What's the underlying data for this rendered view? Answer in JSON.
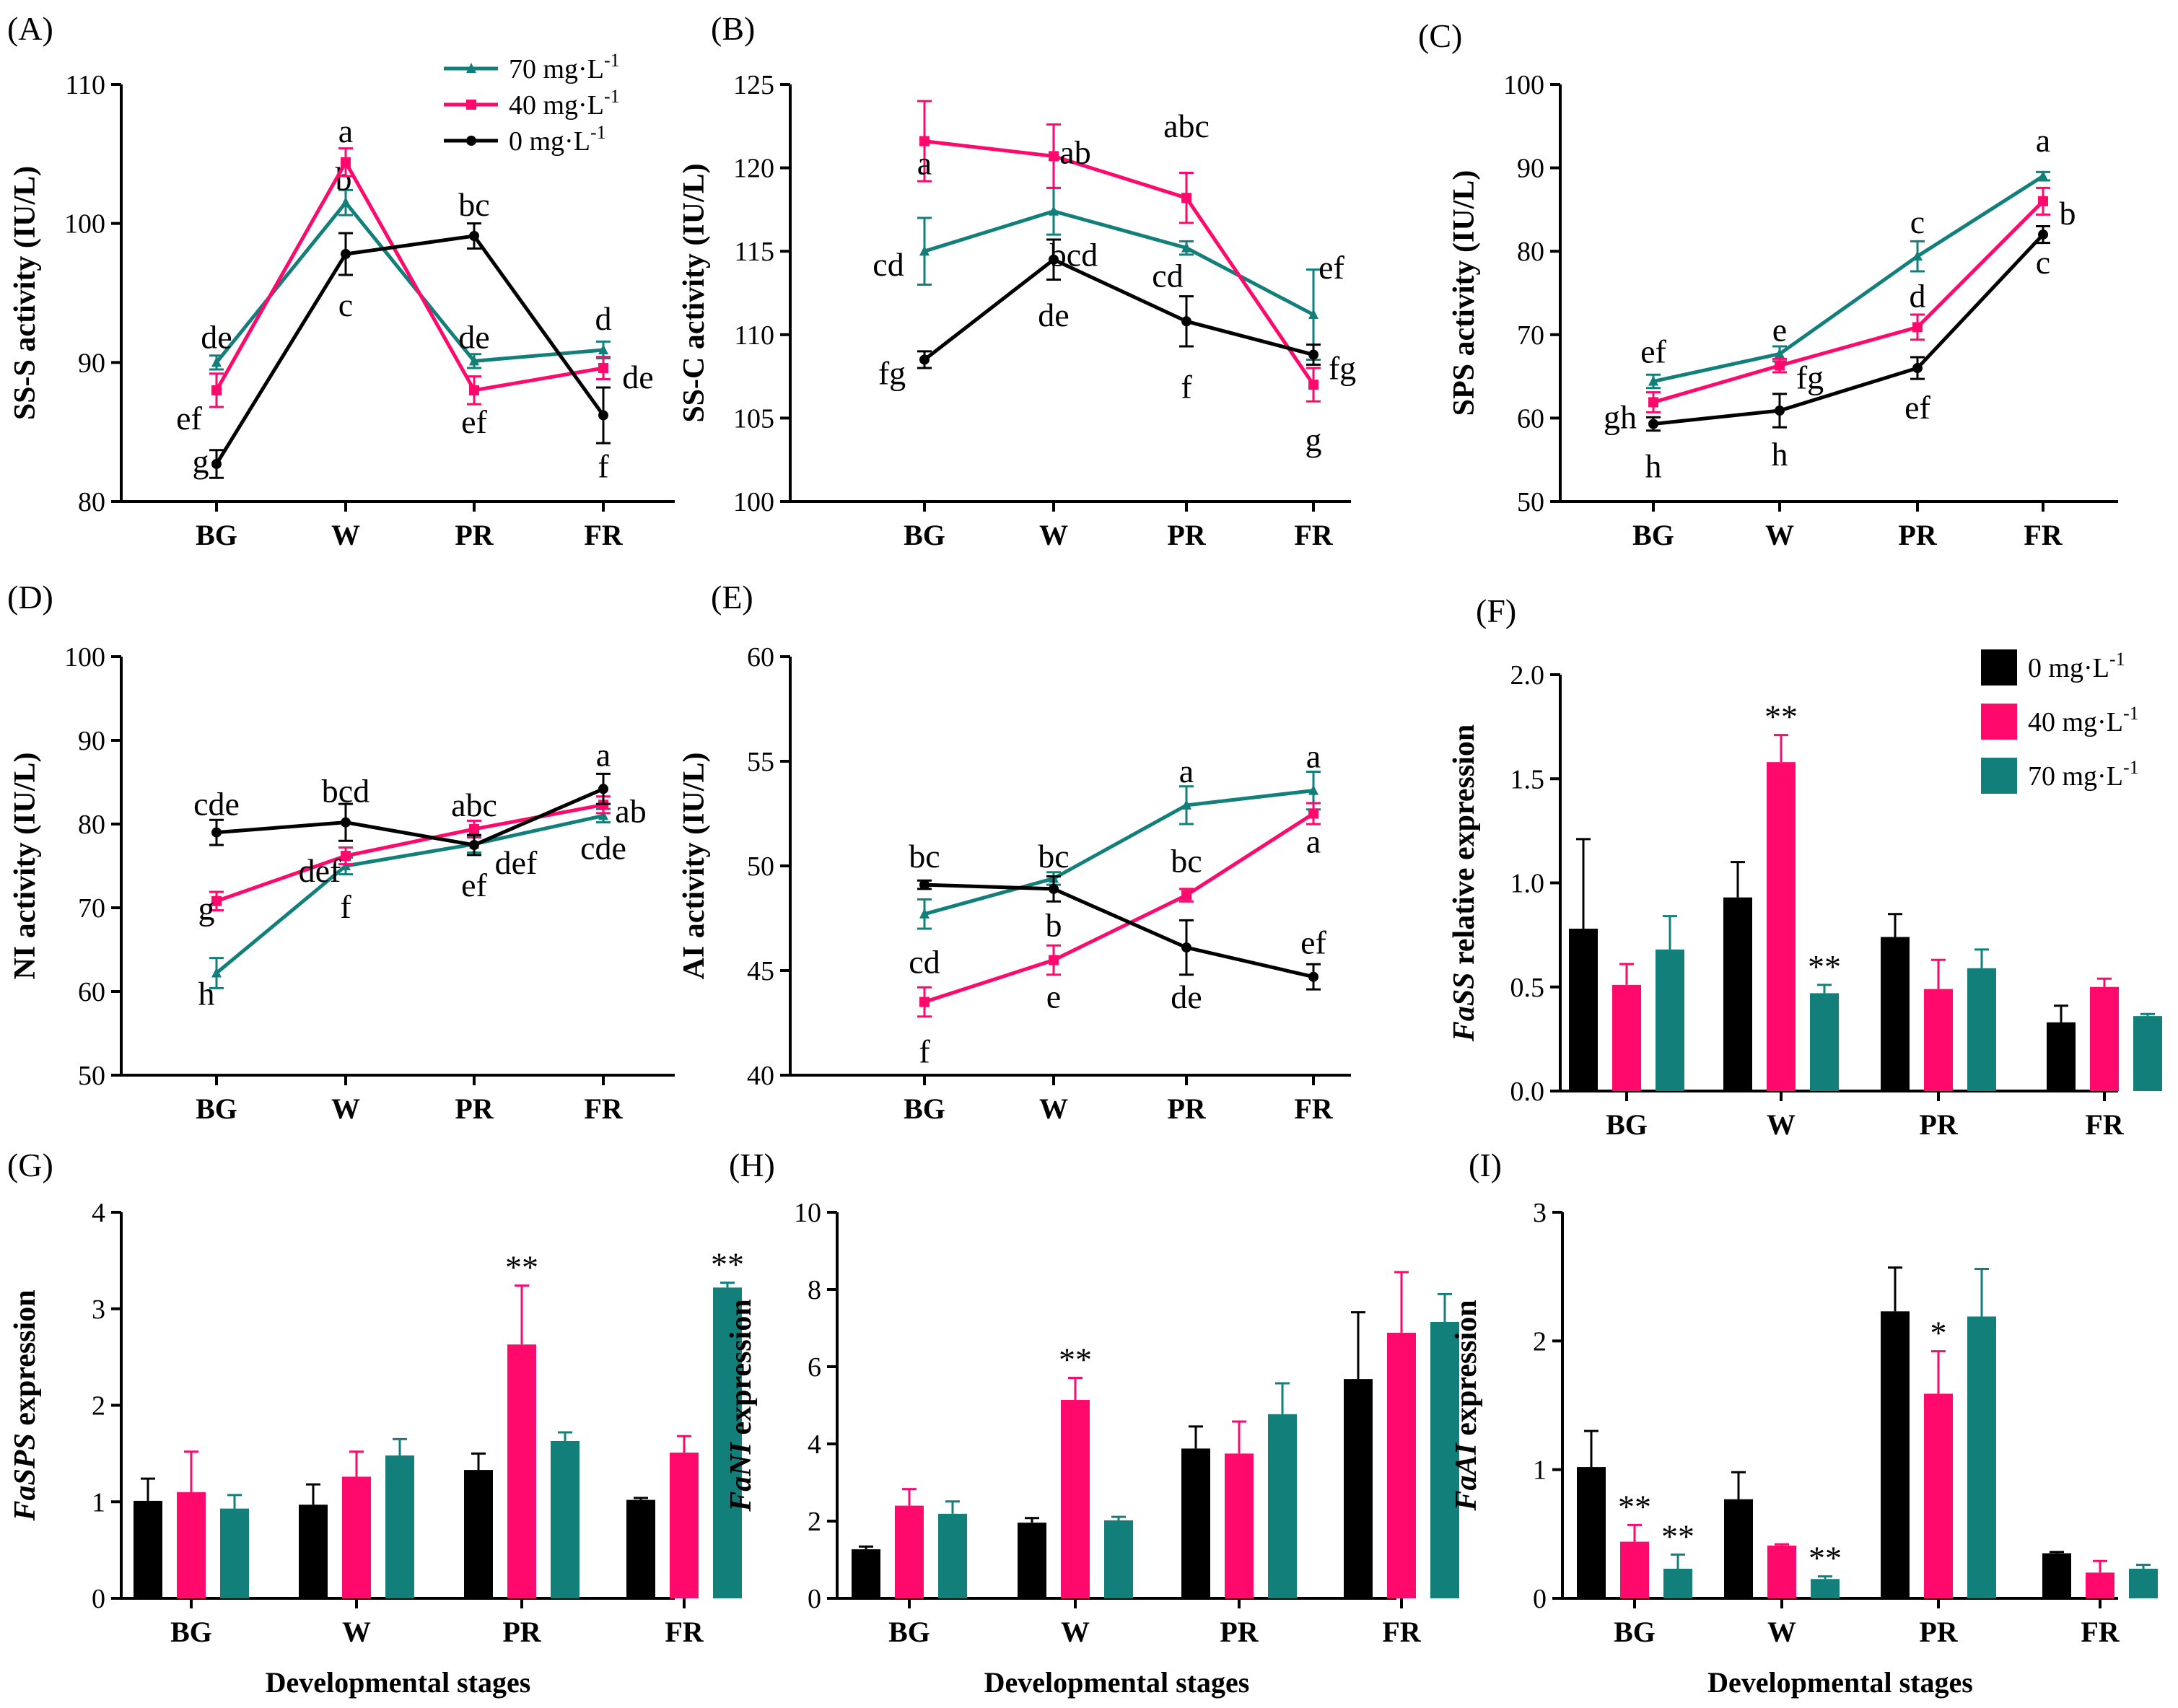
{
  "colors": {
    "c0": "#000000",
    "c40": "#ff0a6c",
    "c70": "#127f7b"
  },
  "figure": {
    "x_axis_title": "Developmental stages",
    "legend_line": {
      "s70": "70 mg·L",
      "s40": "40 mg·L",
      "s0": "0 mg·L",
      "sup": "-1"
    },
    "legend_bar": {
      "s0": "0 mg·L",
      "s40": "40 mg·L",
      "s70": "70 mg·L",
      "sup": "-1"
    }
  },
  "chart_data": [
    {
      "id": "A",
      "label": "(A)",
      "type": "line",
      "categories": [
        "BG",
        "W",
        "PR",
        "FR"
      ],
      "ylabel": "SS-S  activity  (IU/L)",
      "ylim": [
        80,
        110
      ],
      "yticks": [
        80,
        90,
        100,
        110
      ],
      "legend": "top-right",
      "series": [
        {
          "name": "70 mg·L-1",
          "color": "#127f7b",
          "values": [
            90.0,
            101.5,
            90.1,
            90.9
          ],
          "errors": [
            0.5,
            0.9,
            0.5,
            0.6
          ],
          "letters": [
            "de",
            "b",
            "de",
            "d"
          ]
        },
        {
          "name": "40 mg·L-1",
          "color": "#ff0a6c",
          "values": [
            88.0,
            104.4,
            88.0,
            89.6
          ],
          "errors": [
            1.2,
            1.0,
            1.0,
            0.8
          ],
          "letters": [
            "ef",
            "a",
            "ef",
            "de"
          ]
        },
        {
          "name": "0 mg·L-1",
          "color": "#000000",
          "values": [
            82.7,
            97.8,
            99.1,
            86.2
          ],
          "errors": [
            1.0,
            1.5,
            0.9,
            2.0
          ],
          "letters": [
            "g",
            "c",
            "bc",
            "f"
          ]
        }
      ]
    },
    {
      "id": "B",
      "label": "(B)",
      "type": "line",
      "categories": [
        "BG",
        "W",
        "PR",
        "FR"
      ],
      "ylabel": "SS-C activity  (IU/L)",
      "ylim": [
        100,
        125
      ],
      "yticks": [
        100,
        105,
        110,
        115,
        120,
        125
      ],
      "series": [
        {
          "name": "70 mg·L-1",
          "color": "#127f7b",
          "values": [
            115.0,
            117.4,
            115.2,
            111.2
          ],
          "errors": [
            2.0,
            1.4,
            0.4,
            2.7
          ],
          "letters": [
            "cd",
            "bcd",
            "cd",
            "ef"
          ]
        },
        {
          "name": "40 mg·L-1",
          "color": "#ff0a6c",
          "values": [
            121.6,
            120.7,
            118.2,
            107.0
          ],
          "errors": [
            2.4,
            1.9,
            1.5,
            1.0
          ],
          "letters": [
            "a",
            "ab",
            "abc",
            "g"
          ]
        },
        {
          "name": "0 mg·L-1",
          "color": "#000000",
          "values": [
            108.5,
            114.5,
            110.8,
            108.8
          ],
          "errors": [
            0.5,
            1.2,
            1.5,
            0.6
          ],
          "letters": [
            "fg",
            "de",
            "f",
            "fg"
          ]
        }
      ]
    },
    {
      "id": "C",
      "label": "(C)",
      "type": "line",
      "categories": [
        "BG",
        "W",
        "PR",
        "FR"
      ],
      "ylabel": "SPS activity  (IU/L)",
      "ylim": [
        50,
        100
      ],
      "yticks": [
        50,
        60,
        70,
        80,
        90,
        100
      ],
      "series": [
        {
          "name": "70 mg·L-1",
          "color": "#127f7b",
          "values": [
            64.4,
            67.7,
            79.4,
            89.0
          ],
          "errors": [
            0.8,
            0.9,
            1.8,
            0.5
          ],
          "letters": [
            "ef",
            "e",
            "c",
            "a"
          ]
        },
        {
          "name": "40 mg·L-1",
          "color": "#ff0a6c",
          "values": [
            61.9,
            66.3,
            70.9,
            86.0
          ],
          "errors": [
            1.2,
            0.8,
            1.5,
            1.6
          ],
          "letters": [
            "gh",
            "fg",
            "d",
            "b"
          ]
        },
        {
          "name": "0 mg·L-1",
          "color": "#000000",
          "values": [
            59.3,
            60.9,
            66.0,
            82.0
          ],
          "errors": [
            0.8,
            2.0,
            1.3,
            1.0
          ],
          "letters": [
            "h",
            "h",
            "ef",
            "c"
          ]
        }
      ]
    },
    {
      "id": "D",
      "label": "(D)",
      "type": "line",
      "categories": [
        "BG",
        "W",
        "PR",
        "FR"
      ],
      "ylabel": "NI activity  (IU/L)",
      "ylim": [
        50,
        100
      ],
      "yticks": [
        50,
        60,
        70,
        80,
        90,
        100
      ],
      "series": [
        {
          "name": "70 mg·L-1",
          "color": "#127f7b",
          "values": [
            62.2,
            75.0,
            77.6,
            81.0
          ],
          "errors": [
            1.8,
            1.0,
            1.0,
            0.8
          ],
          "letters": [
            "h",
            "f",
            "ef",
            "cde"
          ]
        },
        {
          "name": "40 mg·L-1",
          "color": "#ff0a6c",
          "values": [
            70.8,
            76.2,
            79.4,
            82.3
          ],
          "errors": [
            1.1,
            1.0,
            1.0,
            1.0
          ],
          "letters": [
            "g",
            "def",
            "abc",
            "ab"
          ]
        },
        {
          "name": "0 mg·L-1",
          "color": "#000000",
          "values": [
            79.0,
            80.2,
            77.5,
            84.2
          ],
          "errors": [
            1.5,
            2.2,
            1.2,
            1.8
          ],
          "letters": [
            "cde",
            "bcd",
            "def",
            "a"
          ]
        }
      ]
    },
    {
      "id": "E",
      "label": "(E)",
      "type": "line",
      "categories": [
        "BG",
        "W",
        "PR",
        "FR"
      ],
      "ylabel": "AI activity  (IU/L)",
      "ylim": [
        40,
        60
      ],
      "yticks": [
        40,
        45,
        50,
        55,
        60
      ],
      "series": [
        {
          "name": "70 mg·L-1",
          "color": "#127f7b",
          "values": [
            47.7,
            49.4,
            52.9,
            53.6
          ],
          "errors": [
            0.7,
            0.3,
            0.9,
            0.9
          ],
          "letters": [
            "cd",
            "b",
            "a",
            "a"
          ]
        },
        {
          "name": "40 mg·L-1",
          "color": "#ff0a6c",
          "values": [
            43.5,
            45.5,
            48.6,
            52.5
          ],
          "errors": [
            0.7,
            0.7,
            0.3,
            0.5
          ],
          "letters": [
            "f",
            "e",
            "bc",
            "a"
          ]
        },
        {
          "name": "0 mg·L-1",
          "color": "#000000",
          "values": [
            49.1,
            48.9,
            46.1,
            44.7
          ],
          "errors": [
            0.2,
            0.6,
            1.3,
            0.6
          ],
          "letters": [
            "bc",
            "bc",
            "de",
            "ef"
          ]
        }
      ]
    },
    {
      "id": "F",
      "label": "(F)",
      "type": "bar",
      "categories": [
        "BG",
        "W",
        "PR",
        "FR"
      ],
      "ylabel": "relative expression",
      "gene": "FaSS",
      "ylim": [
        0,
        2.0
      ],
      "yticks": [
        "0.0",
        "0.5",
        "1.0",
        "1.5",
        "2.0"
      ],
      "legend": "top-right",
      "series": [
        {
          "name": "0 mg·L-1",
          "color": "#000000",
          "values": [
            0.78,
            0.93,
            0.74,
            0.33
          ],
          "errors": [
            0.43,
            0.17,
            0.11,
            0.08
          ]
        },
        {
          "name": "40 mg·L-1",
          "color": "#ff0a6c",
          "values": [
            0.51,
            1.58,
            0.49,
            0.5
          ],
          "errors": [
            0.1,
            0.13,
            0.14,
            0.04
          ]
        },
        {
          "name": "70 mg·L-1",
          "color": "#127f7b",
          "values": [
            0.68,
            0.47,
            0.59,
            0.36
          ],
          "errors": [
            0.16,
            0.04,
            0.09,
            0.01
          ]
        }
      ],
      "marks": [
        {
          "cat": 1,
          "series": 1,
          "text": "**"
        },
        {
          "cat": 1,
          "series": 2,
          "text": "**"
        }
      ]
    },
    {
      "id": "G",
      "label": "(G)",
      "type": "bar",
      "categories": [
        "BG",
        "W",
        "PR",
        "FR"
      ],
      "ylabel": "expression",
      "gene": "FaSPS",
      "ylim": [
        0,
        4
      ],
      "yticks": [
        "0",
        "1",
        "2",
        "3",
        "4"
      ],
      "xlabel": "Developmental stages",
      "series": [
        {
          "name": "0 mg·L-1",
          "color": "#000000",
          "values": [
            1.01,
            0.97,
            1.33,
            1.02
          ],
          "errors": [
            0.23,
            0.21,
            0.17,
            0.02
          ]
        },
        {
          "name": "40 mg·L-1",
          "color": "#ff0a6c",
          "values": [
            1.1,
            1.26,
            2.63,
            1.51
          ],
          "errors": [
            0.42,
            0.26,
            0.61,
            0.17
          ]
        },
        {
          "name": "70 mg·L-1",
          "color": "#127f7b",
          "values": [
            0.93,
            1.48,
            1.63,
            3.22
          ],
          "errors": [
            0.14,
            0.17,
            0.09,
            0.05
          ]
        }
      ],
      "marks": [
        {
          "cat": 2,
          "series": 1,
          "text": "**"
        },
        {
          "cat": 3,
          "series": 2,
          "text": "**"
        }
      ]
    },
    {
      "id": "H",
      "label": "(H)",
      "type": "bar",
      "categories": [
        "BG",
        "W",
        "PR",
        "FR"
      ],
      "ylabel": "expression",
      "gene": "FaNI",
      "ylim": [
        0,
        10
      ],
      "yticks": [
        "0",
        "2",
        "4",
        "6",
        "8",
        "10"
      ],
      "xlabel": "Developmental stages",
      "series": [
        {
          "name": "0 mg·L-1",
          "color": "#000000",
          "values": [
            1.27,
            1.96,
            3.88,
            5.68
          ],
          "errors": [
            0.07,
            0.12,
            0.57,
            1.73
          ]
        },
        {
          "name": "40 mg·L-1",
          "color": "#ff0a6c",
          "values": [
            2.4,
            5.14,
            3.75,
            6.88
          ],
          "errors": [
            0.43,
            0.57,
            0.83,
            1.57
          ]
        },
        {
          "name": "70 mg·L-1",
          "color": "#127f7b",
          "values": [
            2.19,
            2.02,
            4.77,
            7.16
          ],
          "errors": [
            0.32,
            0.09,
            0.8,
            0.72
          ]
        }
      ],
      "marks": [
        {
          "cat": 1,
          "series": 1,
          "text": "**"
        }
      ]
    },
    {
      "id": "I",
      "label": "(I)",
      "type": "bar",
      "categories": [
        "BG",
        "W",
        "PR",
        "FR"
      ],
      "ylabel": "expression",
      "gene": "FaAI",
      "ylim": [
        0,
        3
      ],
      "yticks": [
        "0",
        "1",
        "2",
        "3"
      ],
      "xlabel": "Developmental stages",
      "series": [
        {
          "name": "0 mg·L-1",
          "color": "#000000",
          "values": [
            1.02,
            0.77,
            2.23,
            0.35
          ],
          "errors": [
            0.28,
            0.21,
            0.34,
            0.01
          ]
        },
        {
          "name": "40 mg·L-1",
          "color": "#ff0a6c",
          "values": [
            0.44,
            0.41,
            1.59,
            0.2
          ],
          "errors": [
            0.13,
            0.01,
            0.33,
            0.09
          ]
        },
        {
          "name": "70 mg·L-1",
          "color": "#127f7b",
          "values": [
            0.23,
            0.15,
            2.19,
            0.23
          ],
          "errors": [
            0.11,
            0.02,
            0.37,
            0.03
          ]
        }
      ],
      "marks": [
        {
          "cat": 0,
          "series": 1,
          "text": "**"
        },
        {
          "cat": 0,
          "series": 2,
          "text": "**"
        },
        {
          "cat": 1,
          "series": 2,
          "text": "**"
        },
        {
          "cat": 2,
          "series": 1,
          "text": "*"
        }
      ]
    }
  ]
}
